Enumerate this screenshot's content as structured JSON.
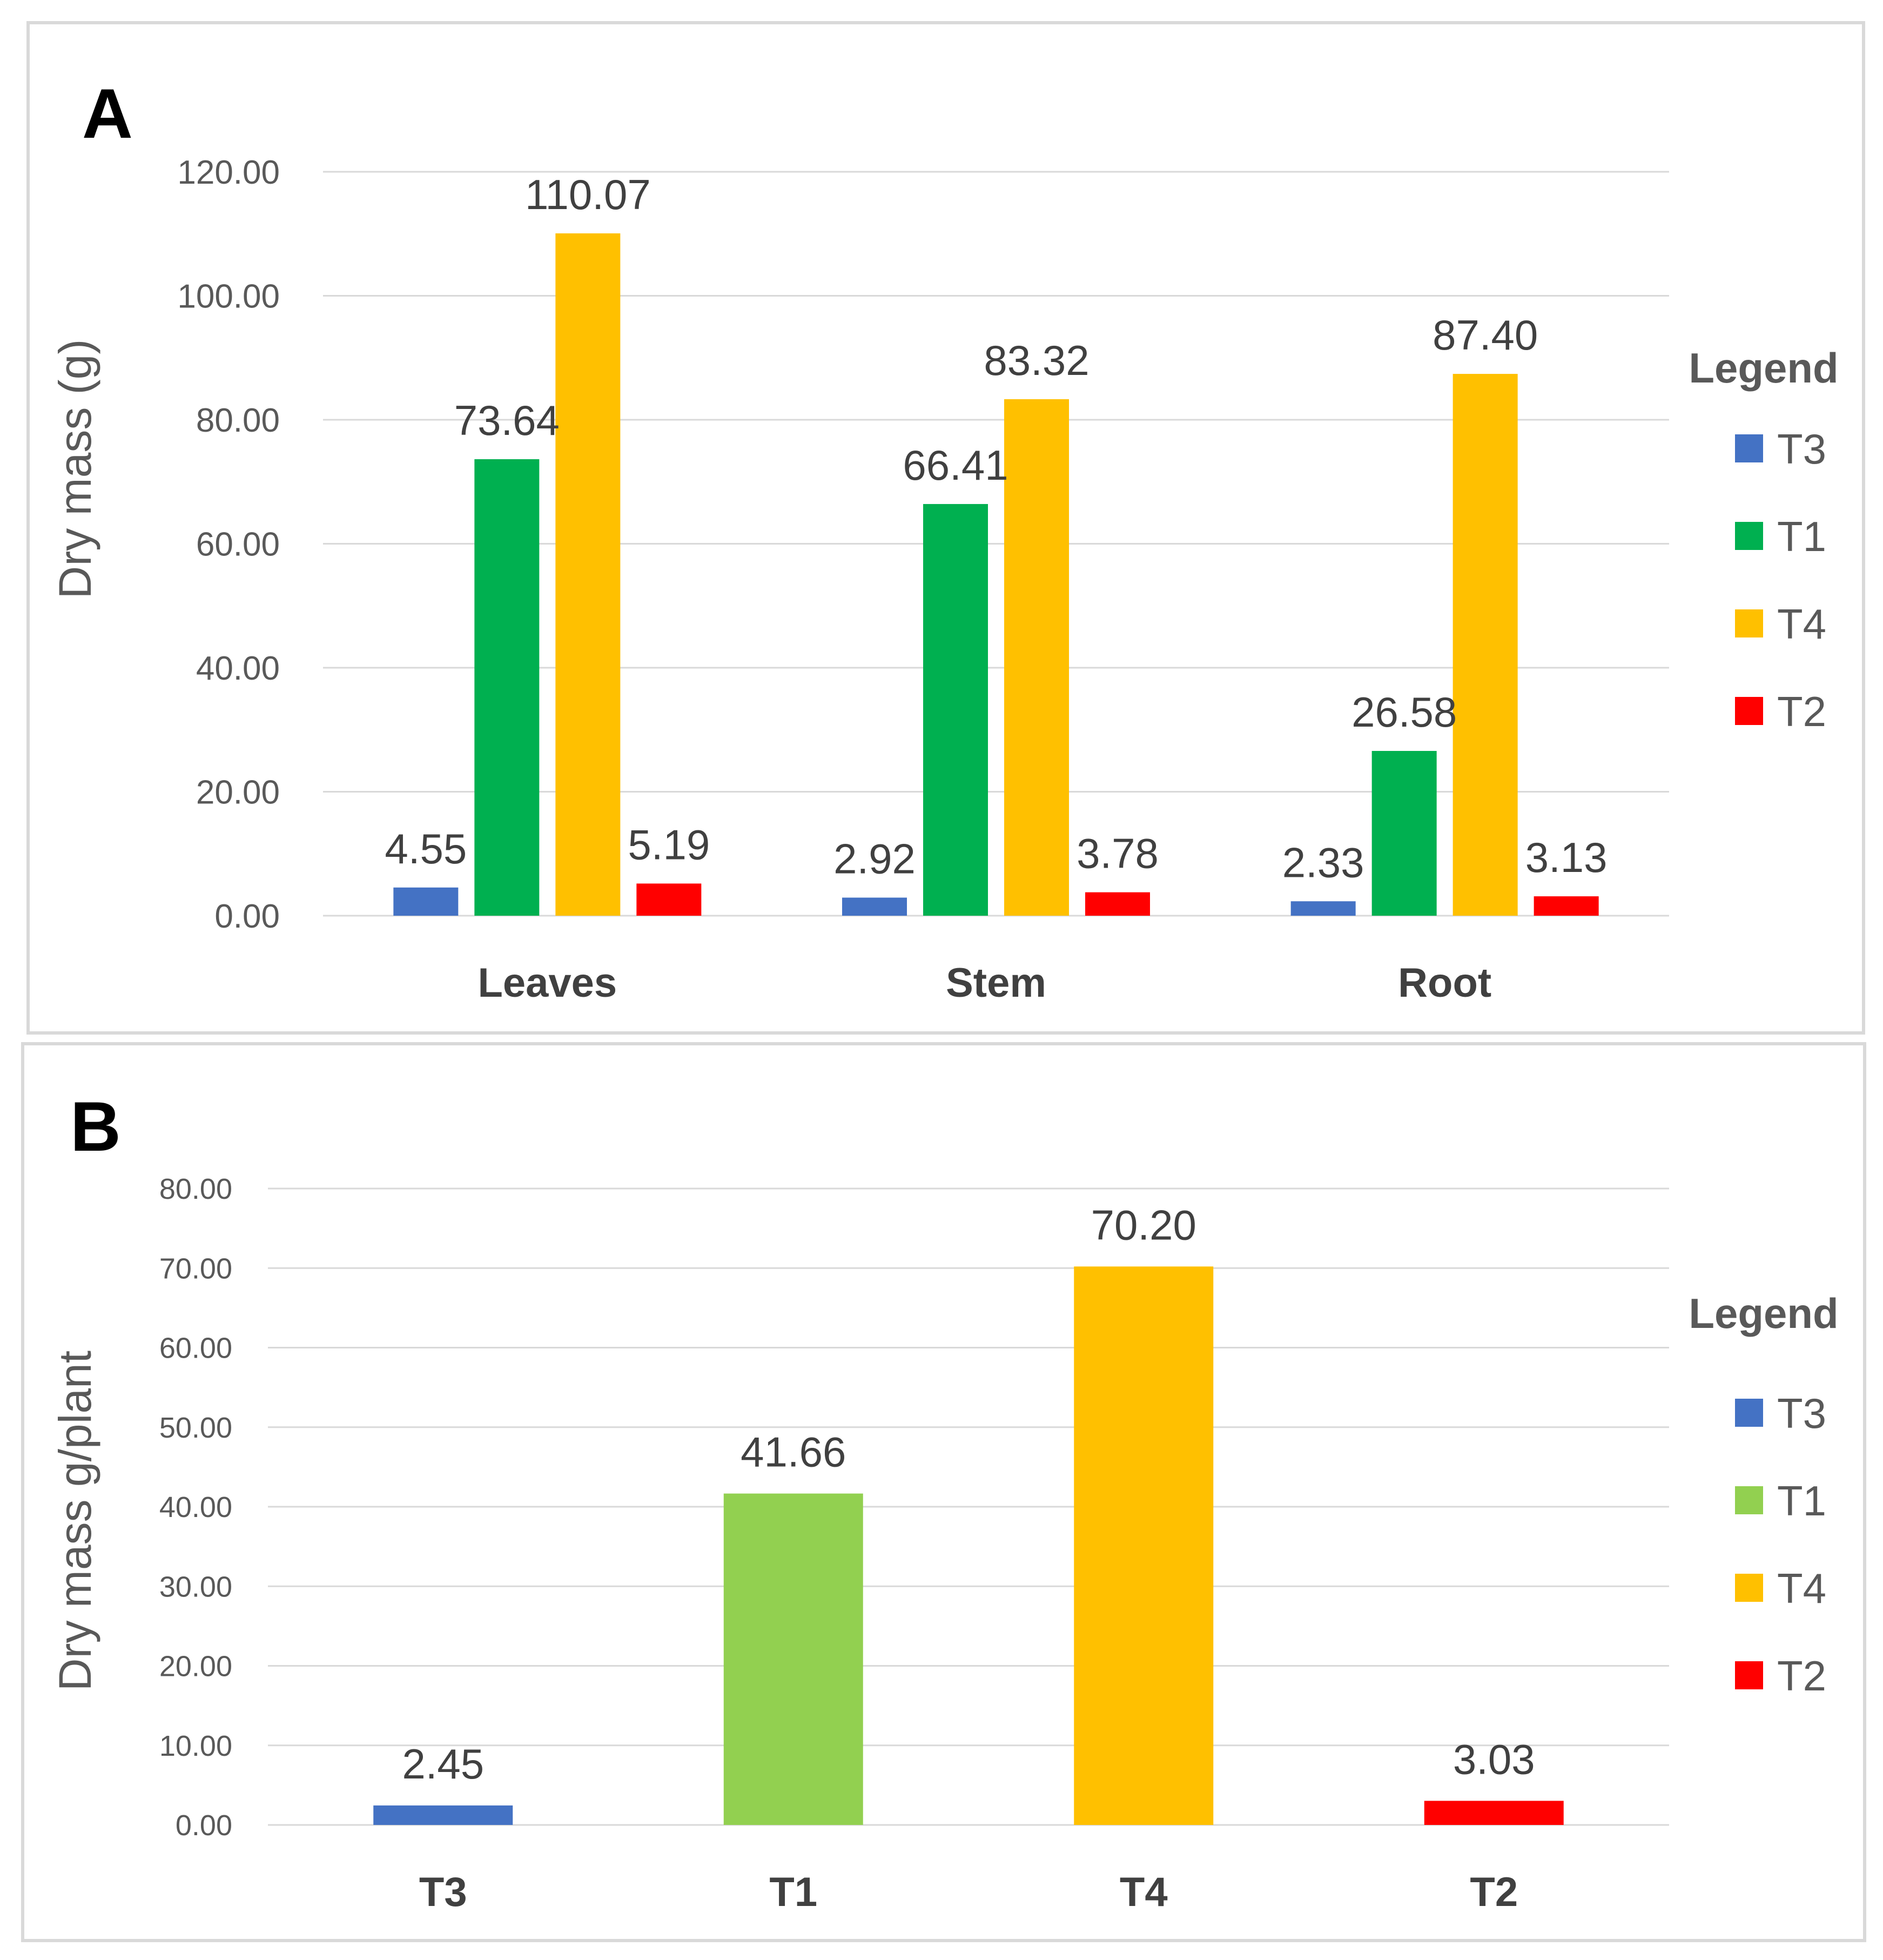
{
  "chart_data": [
    {
      "panel_letter": "A",
      "type": "bar",
      "title": "",
      "ylabel": "Dry mass (g)",
      "xlabel": "",
      "ylim": [
        0,
        120
      ],
      "yticks": [
        "0.00",
        "20.00",
        "40.00",
        "60.00",
        "80.00",
        "100.00",
        "120.00"
      ],
      "categories": [
        "Leaves",
        "Stem",
        "Root"
      ],
      "series": [
        {
          "name": "T3",
          "color": "#4472c4",
          "values": [
            4.55,
            2.92,
            2.33
          ],
          "labels": [
            "4.55",
            "2.92",
            "2.33"
          ]
        },
        {
          "name": "T1",
          "color": "#00b050",
          "values": [
            73.64,
            66.41,
            26.58
          ],
          "labels": [
            "73.64",
            "66.41",
            "26.58"
          ]
        },
        {
          "name": "T4",
          "color": "#ffc000",
          "values": [
            110.07,
            83.32,
            87.4
          ],
          "labels": [
            "110.07",
            "83.32",
            "87.40"
          ]
        },
        {
          "name": "T2",
          "color": "#ff0000",
          "values": [
            5.19,
            3.78,
            3.13
          ],
          "labels": [
            "5.19",
            "3.78",
            "3.13"
          ]
        }
      ],
      "legend": {
        "title": "Legend",
        "position": "right"
      },
      "grid": true
    },
    {
      "panel_letter": "B",
      "type": "bar",
      "title": "",
      "ylabel": "Dry mass g/plant",
      "xlabel": "",
      "ylim": [
        0,
        80
      ],
      "yticks": [
        "0.00",
        "10.00",
        "20.00",
        "30.00",
        "40.00",
        "50.00",
        "60.00",
        "70.00",
        "80.00"
      ],
      "categories": [
        "T3",
        "T1",
        "T4",
        "T2"
      ],
      "values": [
        2.45,
        41.66,
        70.2,
        3.03
      ],
      "labels": [
        "2.45",
        "41.66",
        "70.20",
        "3.03"
      ],
      "colors": [
        "#4472c4",
        "#92d050",
        "#ffc000",
        "#ff0000"
      ],
      "legend": {
        "title": "Legend",
        "position": "right",
        "entries": [
          {
            "name": "T3",
            "color": "#4472c4"
          },
          {
            "name": "T1",
            "color": "#92d050"
          },
          {
            "name": "T4",
            "color": "#ffc000"
          },
          {
            "name": "T2",
            "color": "#ff0000"
          }
        ]
      },
      "grid": true
    }
  ]
}
